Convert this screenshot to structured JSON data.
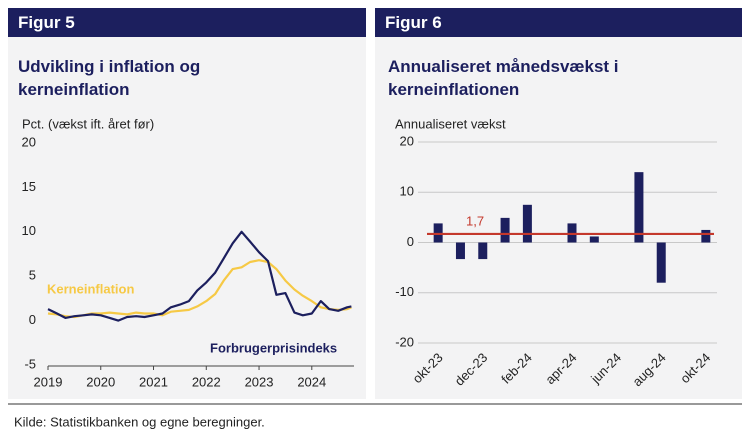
{
  "chart_data": [
    {
      "type": "line",
      "figure": "Figur 5",
      "title": "Udvikling i inflation og kerneinflation",
      "ylabel": "Pct. (vækst ift. året før)",
      "x": [
        2019,
        2019.17,
        2019.33,
        2019.5,
        2019.67,
        2019.83,
        2020,
        2020.17,
        2020.33,
        2020.5,
        2020.67,
        2020.83,
        2021,
        2021.17,
        2021.33,
        2021.5,
        2021.67,
        2021.83,
        2022,
        2022.17,
        2022.33,
        2022.5,
        2022.67,
        2022.83,
        2023,
        2023.17,
        2023.33,
        2023.5,
        2023.67,
        2023.83,
        2024,
        2024.17,
        2024.33,
        2024.5,
        2024.67,
        2024.75
      ],
      "series": [
        {
          "name": "Kerneinflation",
          "color": "#f6c945",
          "values": [
            0.8,
            0.7,
            0.5,
            0.4,
            0.6,
            0.8,
            0.8,
            0.9,
            0.8,
            0.7,
            0.9,
            0.8,
            0.8,
            0.6,
            1.0,
            1.1,
            1.2,
            1.6,
            2.2,
            3.0,
            4.5,
            5.8,
            6.0,
            6.6,
            6.8,
            6.6,
            5.8,
            4.5,
            3.5,
            2.8,
            2.2,
            1.5,
            1.3,
            1.2,
            1.3,
            1.5
          ]
        },
        {
          "name": "Forbrugerprisindeks",
          "color": "#1c1f5e",
          "values": [
            1.3,
            0.8,
            0.3,
            0.5,
            0.6,
            0.7,
            0.6,
            0.3,
            0.0,
            0.4,
            0.5,
            0.4,
            0.6,
            0.8,
            1.5,
            1.8,
            2.2,
            3.4,
            4.3,
            5.4,
            7.0,
            8.7,
            10.0,
            8.9,
            7.7,
            6.7,
            2.9,
            3.1,
            0.9,
            0.6,
            0.8,
            2.2,
            1.3,
            1.1,
            1.5,
            1.6
          ]
        }
      ],
      "xlim": [
        2019,
        2024.8
      ],
      "xticks": [
        2019,
        2020,
        2021,
        2022,
        2023,
        2024
      ],
      "ylim": [
        -5,
        20
      ],
      "yticks": [
        -5,
        0,
        5,
        10,
        15,
        20
      ],
      "grid": false
    },
    {
      "type": "bar",
      "figure": "Figur 6",
      "title": "Annualiseret månedsvækst i kerneinflationen",
      "ylabel": "Annualiseret vækst",
      "categories": [
        "okt-23",
        null,
        "dec-23",
        null,
        "feb-24",
        null,
        "apr-24",
        null,
        "jun-24",
        null,
        "aug-24",
        null,
        "okt-24"
      ],
      "values": [
        3.8,
        -3.3,
        -3.3,
        4.9,
        7.5,
        0,
        3.8,
        1.2,
        0,
        14.0,
        -8.0,
        0,
        2.5
      ],
      "color": "#1c1f5e",
      "reference_line": {
        "value": 1.7,
        "label": "1,7",
        "color": "#c4382c"
      },
      "ylim": [
        -20,
        20
      ],
      "yticks": [
        -20,
        -10,
        0,
        10,
        20
      ],
      "grid": true
    }
  ],
  "source": "Kilde:  Statistikbanken og egne beregninger."
}
